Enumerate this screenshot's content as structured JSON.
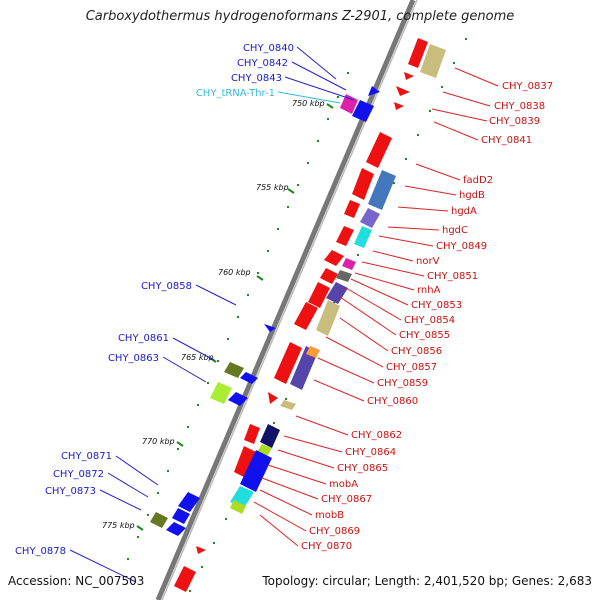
{
  "map": {
    "title": "Carboxydothermus hydrogenoformans Z-2901, complete genome",
    "accession_text": "Accession: NC_007503",
    "topology_text": "Topology: circular; Length: 2,401,520 bp; Genes: 2,683",
    "colors": {
      "backbone": "#888888",
      "plus_strand": "#ee1111",
      "minus_strand": "#1111ee",
      "ticks": "#228822"
    },
    "kbp_ticks": [
      "750 kbp",
      "755 kbp",
      "760 kbp",
      "765 kbp",
      "770 kbp",
      "775 kbp"
    ],
    "left_labels": [
      "CHY_0840",
      "CHY_0842",
      "CHY_0843",
      "CHY_tRNA-Thr-1",
      "CHY_0858",
      "CHY_0861",
      "CHY_0863",
      "CHY_0871",
      "CHY_0872",
      "CHY_0873",
      "CHY_0878"
    ],
    "right_labels": [
      "CHY_0837",
      "CHY_0838",
      "CHY_0839",
      "CHY_0841",
      "fadD2",
      "hgdB",
      "hgdA",
      "hgdC",
      "CHY_0849",
      "norV",
      "CHY_0851",
      "rnhA",
      "CHY_0853",
      "CHY_0854",
      "CHY_0855",
      "CHY_0856",
      "CHY_0857",
      "CHY_0859",
      "CHY_0860",
      "CHY_0862",
      "CHY_0864",
      "CHY_0865",
      "mobA",
      "CHY_0867",
      "mobB",
      "CHY_0869",
      "CHY_0870"
    ]
  }
}
